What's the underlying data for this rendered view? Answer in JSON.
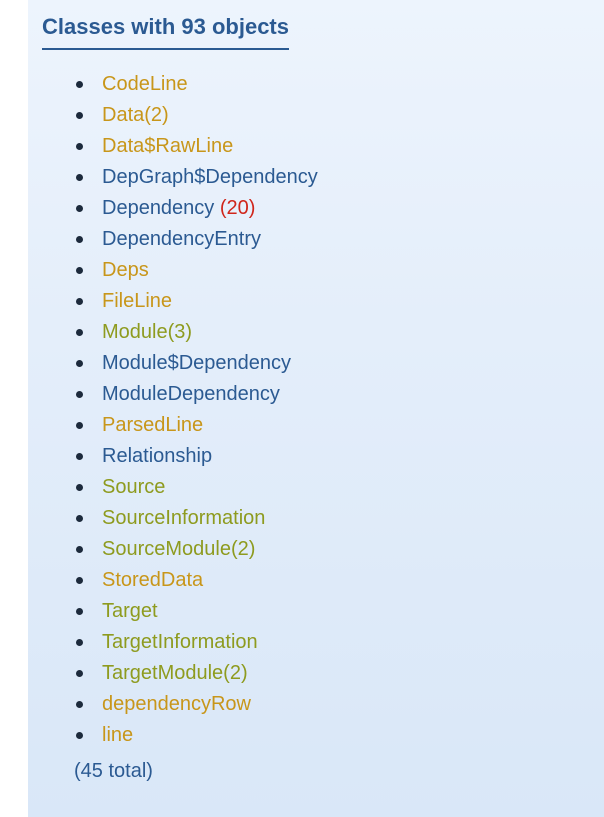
{
  "heading": "Classes with 93 objects",
  "colors": {
    "gold": "#c8961a",
    "olive": "#8e9b1f",
    "navy": "#2b5a92",
    "count_red": "#d0261b"
  },
  "classes": [
    {
      "name": "CodeLine",
      "color": "gold"
    },
    {
      "name": "Data(2)",
      "color": "gold"
    },
    {
      "name": "Data$RawLine",
      "color": "gold"
    },
    {
      "name": "DepGraph$Dependency",
      "color": "navy"
    },
    {
      "name": "Dependency",
      "count": "(20)",
      "color": "navy"
    },
    {
      "name": "DependencyEntry",
      "color": "navy"
    },
    {
      "name": "Deps",
      "color": "gold"
    },
    {
      "name": "FileLine",
      "color": "gold"
    },
    {
      "name": "Module(3)",
      "color": "olive"
    },
    {
      "name": "Module$Dependency",
      "color": "navy"
    },
    {
      "name": "ModuleDependency",
      "color": "navy"
    },
    {
      "name": "ParsedLine",
      "color": "gold"
    },
    {
      "name": "Relationship",
      "color": "navy"
    },
    {
      "name": "Source",
      "color": "olive"
    },
    {
      "name": "SourceInformation",
      "color": "olive"
    },
    {
      "name": "SourceModule(2)",
      "color": "olive"
    },
    {
      "name": "StoredData",
      "color": "gold"
    },
    {
      "name": "Target",
      "color": "olive"
    },
    {
      "name": "TargetInformation",
      "color": "olive"
    },
    {
      "name": "TargetModule(2)",
      "color": "olive"
    },
    {
      "name": "dependencyRow",
      "color": "gold"
    },
    {
      "name": "line",
      "color": "gold"
    }
  ],
  "total": "(45 total)"
}
